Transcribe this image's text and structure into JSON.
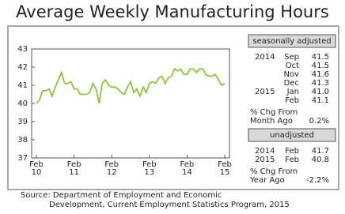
{
  "chart_data": {
    "type": "line",
    "title": "Average Weekly Manufacturing Hours",
    "categories": [
      "Feb 10",
      null,
      null,
      null,
      null,
      null,
      null,
      null,
      null,
      null,
      null,
      null,
      "Feb 11",
      null,
      null,
      null,
      null,
      null,
      null,
      null,
      null,
      null,
      null,
      null,
      "Feb 12",
      null,
      null,
      null,
      null,
      null,
      null,
      null,
      null,
      null,
      null,
      null,
      "Feb 13",
      null,
      null,
      null,
      null,
      null,
      null,
      null,
      null,
      null,
      null,
      null,
      "Feb 14",
      null,
      null,
      null,
      null,
      null,
      null,
      null,
      null,
      null,
      null,
      null,
      "Feb 15"
    ],
    "values": [
      40.0,
      40.2,
      40.7,
      40.7,
      40.8,
      40.4,
      40.9,
      41.3,
      41.7,
      41.1,
      41.1,
      41.2,
      40.8,
      40.8,
      40.5,
      40.5,
      40.5,
      40.6,
      41.1,
      40.8,
      40.0,
      41.1,
      41.3,
      41.0,
      40.9,
      40.9,
      40.8,
      40.6,
      40.5,
      40.9,
      41.2,
      40.6,
      40.8,
      40.4,
      40.9,
      40.6,
      41.1,
      41.2,
      41.1,
      41.4,
      41.5,
      41.1,
      41.4,
      41.5,
      41.9,
      41.8,
      41.9,
      41.6,
      41.6,
      41.9,
      41.9,
      41.7,
      41.9,
      41.9,
      41.6,
      41.5,
      41.5,
      41.6,
      41.3,
      41.0,
      41.1
    ],
    "color": "#8dc63f",
    "ylim": [
      37,
      43
    ],
    "yticks": [
      37,
      38,
      39,
      40,
      41,
      42,
      43
    ],
    "grid": false
  },
  "panel": {
    "seasonally_adjusted": {
      "title": "seasonally adjusted",
      "rows": [
        {
          "year": "2014",
          "month": "Sep",
          "value": "41.5"
        },
        {
          "month": "Oct",
          "value": "41.5"
        },
        {
          "month": "Nov",
          "value": "41.6"
        },
        {
          "month": "Dec",
          "value": "41.3"
        },
        {
          "year": "2015",
          "month": "Jan",
          "value": "41.0"
        },
        {
          "month": "Feb",
          "value": "41.1"
        }
      ],
      "change_label_1": "% Chg From",
      "change_label_2": "Month Ago",
      "change": "0.2%"
    },
    "unadjusted": {
      "title": "unadjusted",
      "rows": [
        {
          "year": "2014",
          "month": "Feb",
          "value": "41.7"
        },
        {
          "year": "2015",
          "month": "Feb",
          "value": "40.8"
        }
      ],
      "change_label_1": "% Chg From",
      "change_label_2": "Year Ago",
      "change": "-2.2%"
    }
  },
  "source": [
    "Source: Department of Employment and Economic",
    "Development, Current Employment Statistics Program, 2015"
  ]
}
